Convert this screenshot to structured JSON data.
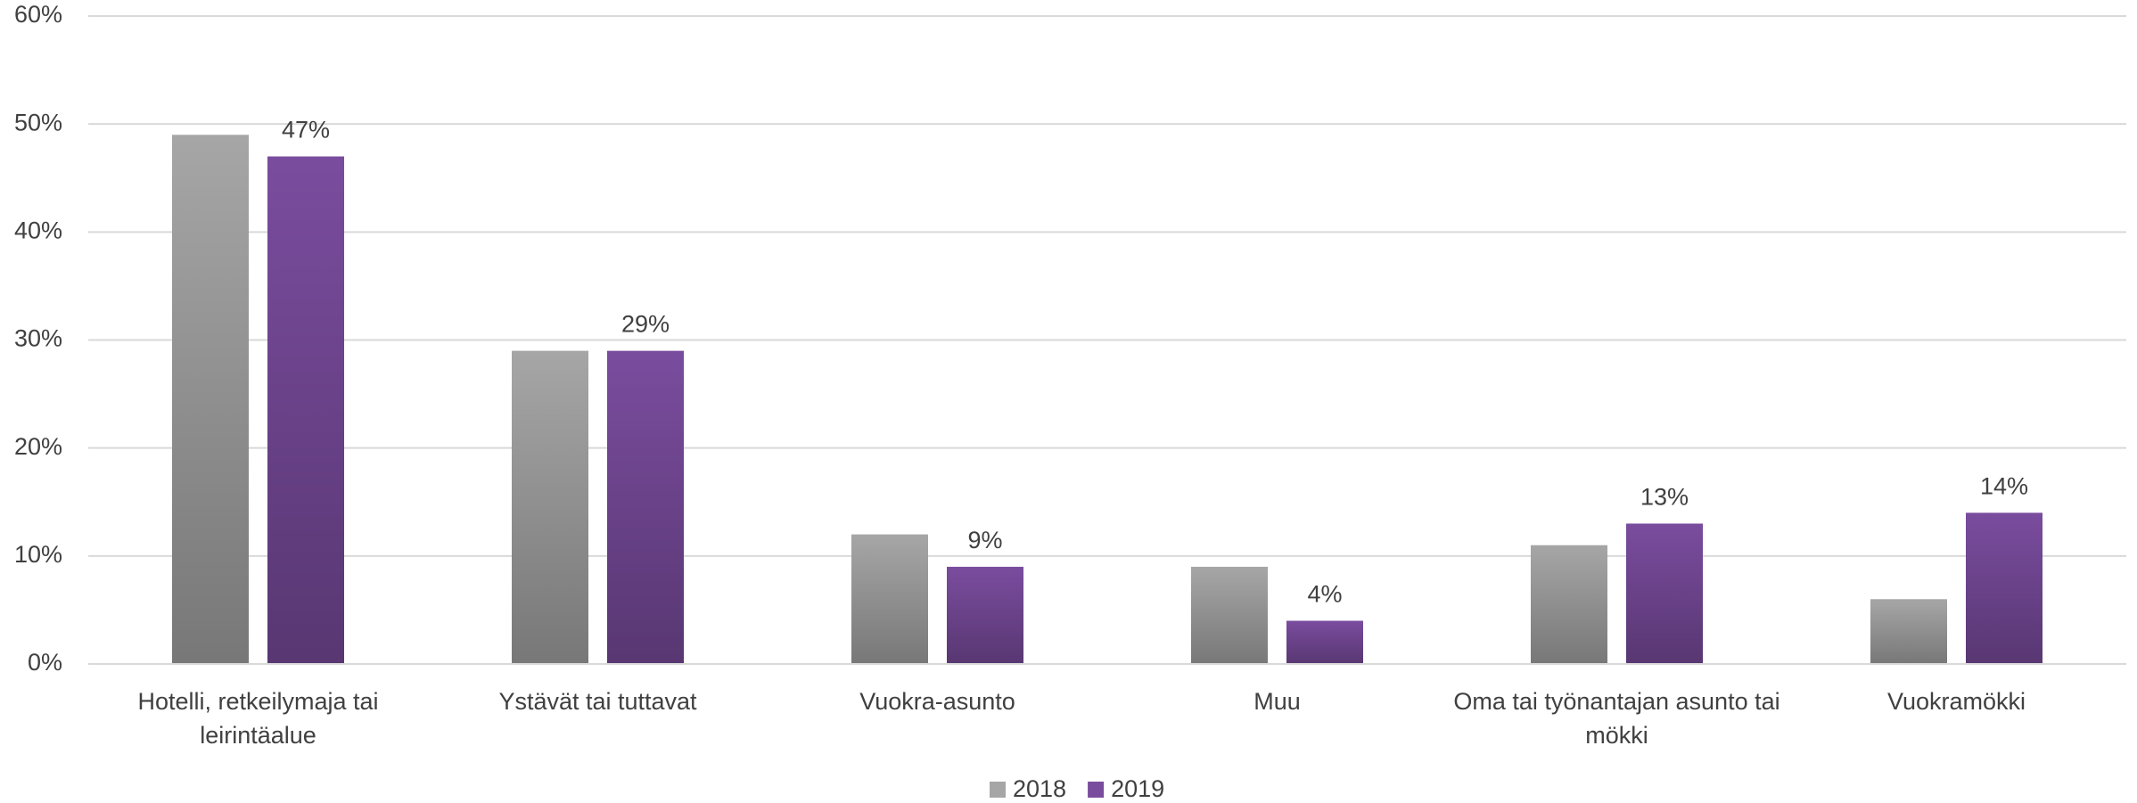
{
  "chart_data": {
    "type": "bar",
    "categories": [
      "Hotelli, retkeilymaja tai leirintäalue",
      "Ystävät tai tuttavat",
      "Vuokra-asunto",
      "Muu",
      "Oma tai työnantajan asunto tai mökki",
      "Vuokramökki"
    ],
    "series": [
      {
        "name": "2018",
        "color": "#a6a6a6",
        "values": [
          49,
          29,
          12,
          9,
          11,
          6
        ]
      },
      {
        "name": "2019",
        "color": "#7a4c9e",
        "values": [
          47,
          29,
          9,
          4,
          13,
          14
        ],
        "value_labels": [
          "47%",
          "29%",
          "9%",
          "4%",
          "13%",
          "14%"
        ]
      }
    ],
    "ylim": [
      0,
      60
    ],
    "yticks": [
      {
        "value": 0,
        "label": "0%"
      },
      {
        "value": 10,
        "label": "10%"
      },
      {
        "value": 20,
        "label": "20%"
      },
      {
        "value": 30,
        "label": "30%"
      },
      {
        "value": 40,
        "label": "40%"
      },
      {
        "value": 50,
        "label": "50%"
      },
      {
        "value": 60,
        "label": "60%"
      }
    ],
    "grid": true,
    "legend": "bottom"
  }
}
